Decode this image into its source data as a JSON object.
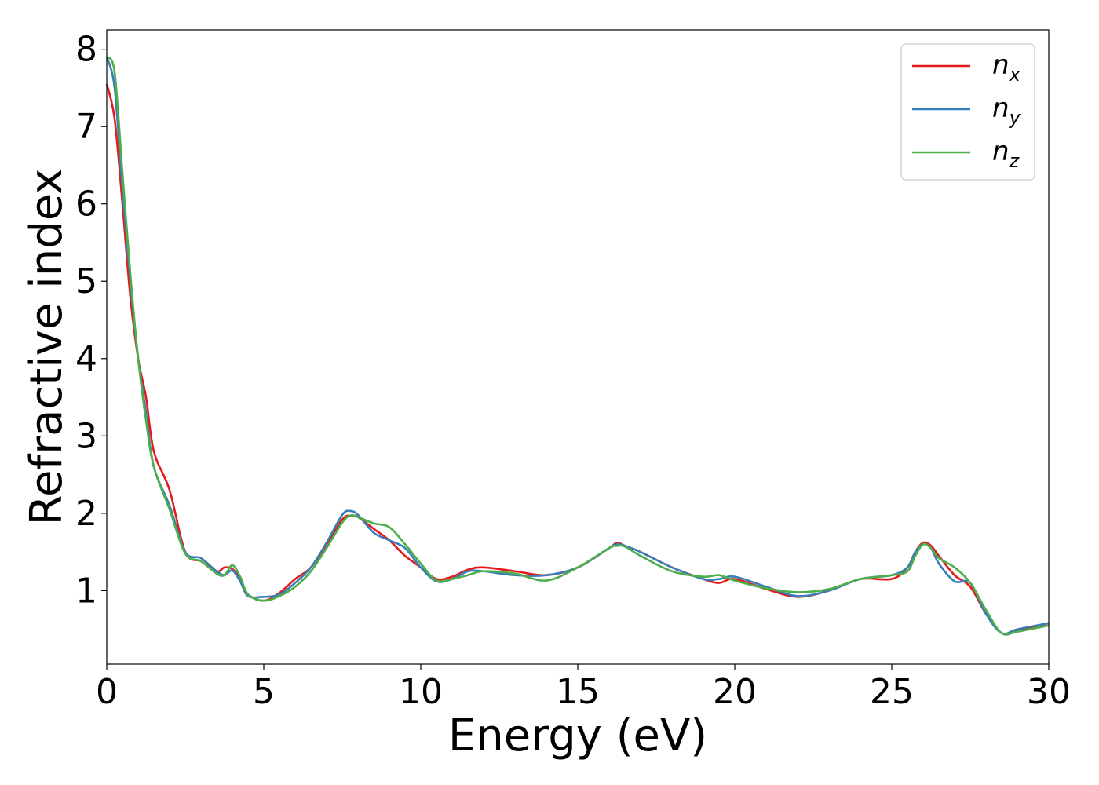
{
  "chart_data": {
    "type": "line",
    "xlabel": "Energy (eV)",
    "ylabel": "Refractive index",
    "xlim": [
      0,
      30
    ],
    "ylim": [
      0.05,
      8.25
    ],
    "xticks": [
      "0",
      "5",
      "10",
      "15",
      "20",
      "25",
      "30"
    ],
    "yticks": [
      "1",
      "2",
      "3",
      "4",
      "5",
      "6",
      "7",
      "8"
    ],
    "grid": false,
    "legend_position": "top-right",
    "series": [
      {
        "name": "n_x",
        "label_main": "n",
        "label_sub": "x",
        "color": "#e41a1c",
        "x": [
          0,
          0.25,
          0.5,
          0.75,
          1,
          1.25,
          1.5,
          2,
          2.5,
          3,
          3.5,
          3.75,
          4,
          4.25,
          4.5,
          5,
          5.5,
          6,
          6.5,
          7,
          7.5,
          7.75,
          8,
          8.5,
          9,
          9.5,
          10,
          10.5,
          11,
          11.5,
          12,
          13,
          14,
          15,
          16,
          16.25,
          16.5,
          17,
          18,
          19,
          19.5,
          20,
          21,
          22,
          23,
          24,
          25,
          25.5,
          25.75,
          26,
          26.25,
          26.5,
          27,
          27.5,
          28,
          28.5,
          29,
          30
        ],
        "y": [
          7.55,
          7.1,
          6.0,
          4.8,
          4.0,
          3.5,
          2.8,
          2.3,
          1.5,
          1.38,
          1.25,
          1.3,
          1.28,
          1.15,
          0.95,
          0.87,
          0.97,
          1.15,
          1.3,
          1.6,
          1.92,
          1.97,
          1.95,
          1.8,
          1.65,
          1.45,
          1.3,
          1.15,
          1.18,
          1.27,
          1.3,
          1.25,
          1.2,
          1.3,
          1.55,
          1.62,
          1.58,
          1.5,
          1.3,
          1.15,
          1.1,
          1.15,
          1.02,
          0.92,
          1.0,
          1.15,
          1.15,
          1.3,
          1.5,
          1.62,
          1.58,
          1.45,
          1.2,
          1.05,
          0.7,
          0.45,
          0.48,
          0.58
        ]
      },
      {
        "name": "n_y",
        "label_main": "n",
        "label_sub": "y",
        "color": "#377eb8",
        "x": [
          0,
          0.25,
          0.5,
          0.75,
          1,
          1.25,
          1.5,
          2,
          2.5,
          3,
          3.5,
          3.75,
          4,
          4.25,
          4.5,
          5,
          5.5,
          6,
          6.5,
          7,
          7.5,
          7.75,
          8,
          8.5,
          9,
          9.5,
          10,
          10.5,
          11,
          11.5,
          12,
          13,
          14,
          15,
          16,
          16.25,
          16.5,
          17,
          18,
          19,
          19.5,
          20,
          21,
          22,
          23,
          24,
          25,
          25.5,
          25.75,
          26,
          26.25,
          26.5,
          27,
          27.5,
          28,
          28.5,
          29,
          30
        ],
        "y": [
          7.9,
          7.5,
          6.2,
          5.0,
          4.0,
          3.3,
          2.6,
          2.1,
          1.5,
          1.42,
          1.25,
          1.2,
          1.26,
          1.12,
          0.93,
          0.92,
          0.95,
          1.1,
          1.3,
          1.62,
          1.98,
          2.03,
          1.98,
          1.75,
          1.65,
          1.55,
          1.3,
          1.12,
          1.15,
          1.25,
          1.25,
          1.2,
          1.2,
          1.3,
          1.55,
          1.6,
          1.58,
          1.5,
          1.3,
          1.15,
          1.15,
          1.18,
          1.05,
          0.93,
          1.0,
          1.15,
          1.2,
          1.3,
          1.5,
          1.6,
          1.55,
          1.35,
          1.12,
          1.1,
          0.7,
          0.45,
          0.5,
          0.58
        ]
      },
      {
        "name": "n_z",
        "label_main": "n",
        "label_sub": "z",
        "color": "#4daf4a",
        "x": [
          0,
          0.25,
          0.5,
          0.75,
          1,
          1.25,
          1.5,
          2,
          2.5,
          3,
          3.5,
          3.75,
          4,
          4.25,
          4.5,
          5,
          5.5,
          6,
          6.5,
          7,
          7.5,
          7.75,
          8,
          8.5,
          9,
          9.5,
          10,
          10.5,
          11,
          11.5,
          12,
          13,
          14,
          15,
          16,
          16.25,
          16.5,
          17,
          18,
          19,
          19.5,
          20,
          21,
          22,
          23,
          24,
          25,
          25.5,
          25.75,
          26,
          26.25,
          26.5,
          27,
          27.5,
          28,
          28.5,
          29,
          30
        ],
        "y": [
          7.9,
          7.7,
          6.4,
          5.1,
          4.0,
          3.2,
          2.6,
          2.05,
          1.48,
          1.38,
          1.22,
          1.2,
          1.33,
          1.18,
          0.95,
          0.87,
          0.93,
          1.05,
          1.25,
          1.55,
          1.88,
          1.97,
          1.95,
          1.87,
          1.82,
          1.6,
          1.35,
          1.13,
          1.15,
          1.2,
          1.25,
          1.22,
          1.13,
          1.3,
          1.55,
          1.58,
          1.57,
          1.45,
          1.25,
          1.18,
          1.2,
          1.13,
          1.03,
          0.98,
          1.02,
          1.15,
          1.2,
          1.25,
          1.45,
          1.6,
          1.55,
          1.42,
          1.3,
          1.1,
          0.75,
          0.45,
          0.47,
          0.55
        ]
      }
    ]
  }
}
